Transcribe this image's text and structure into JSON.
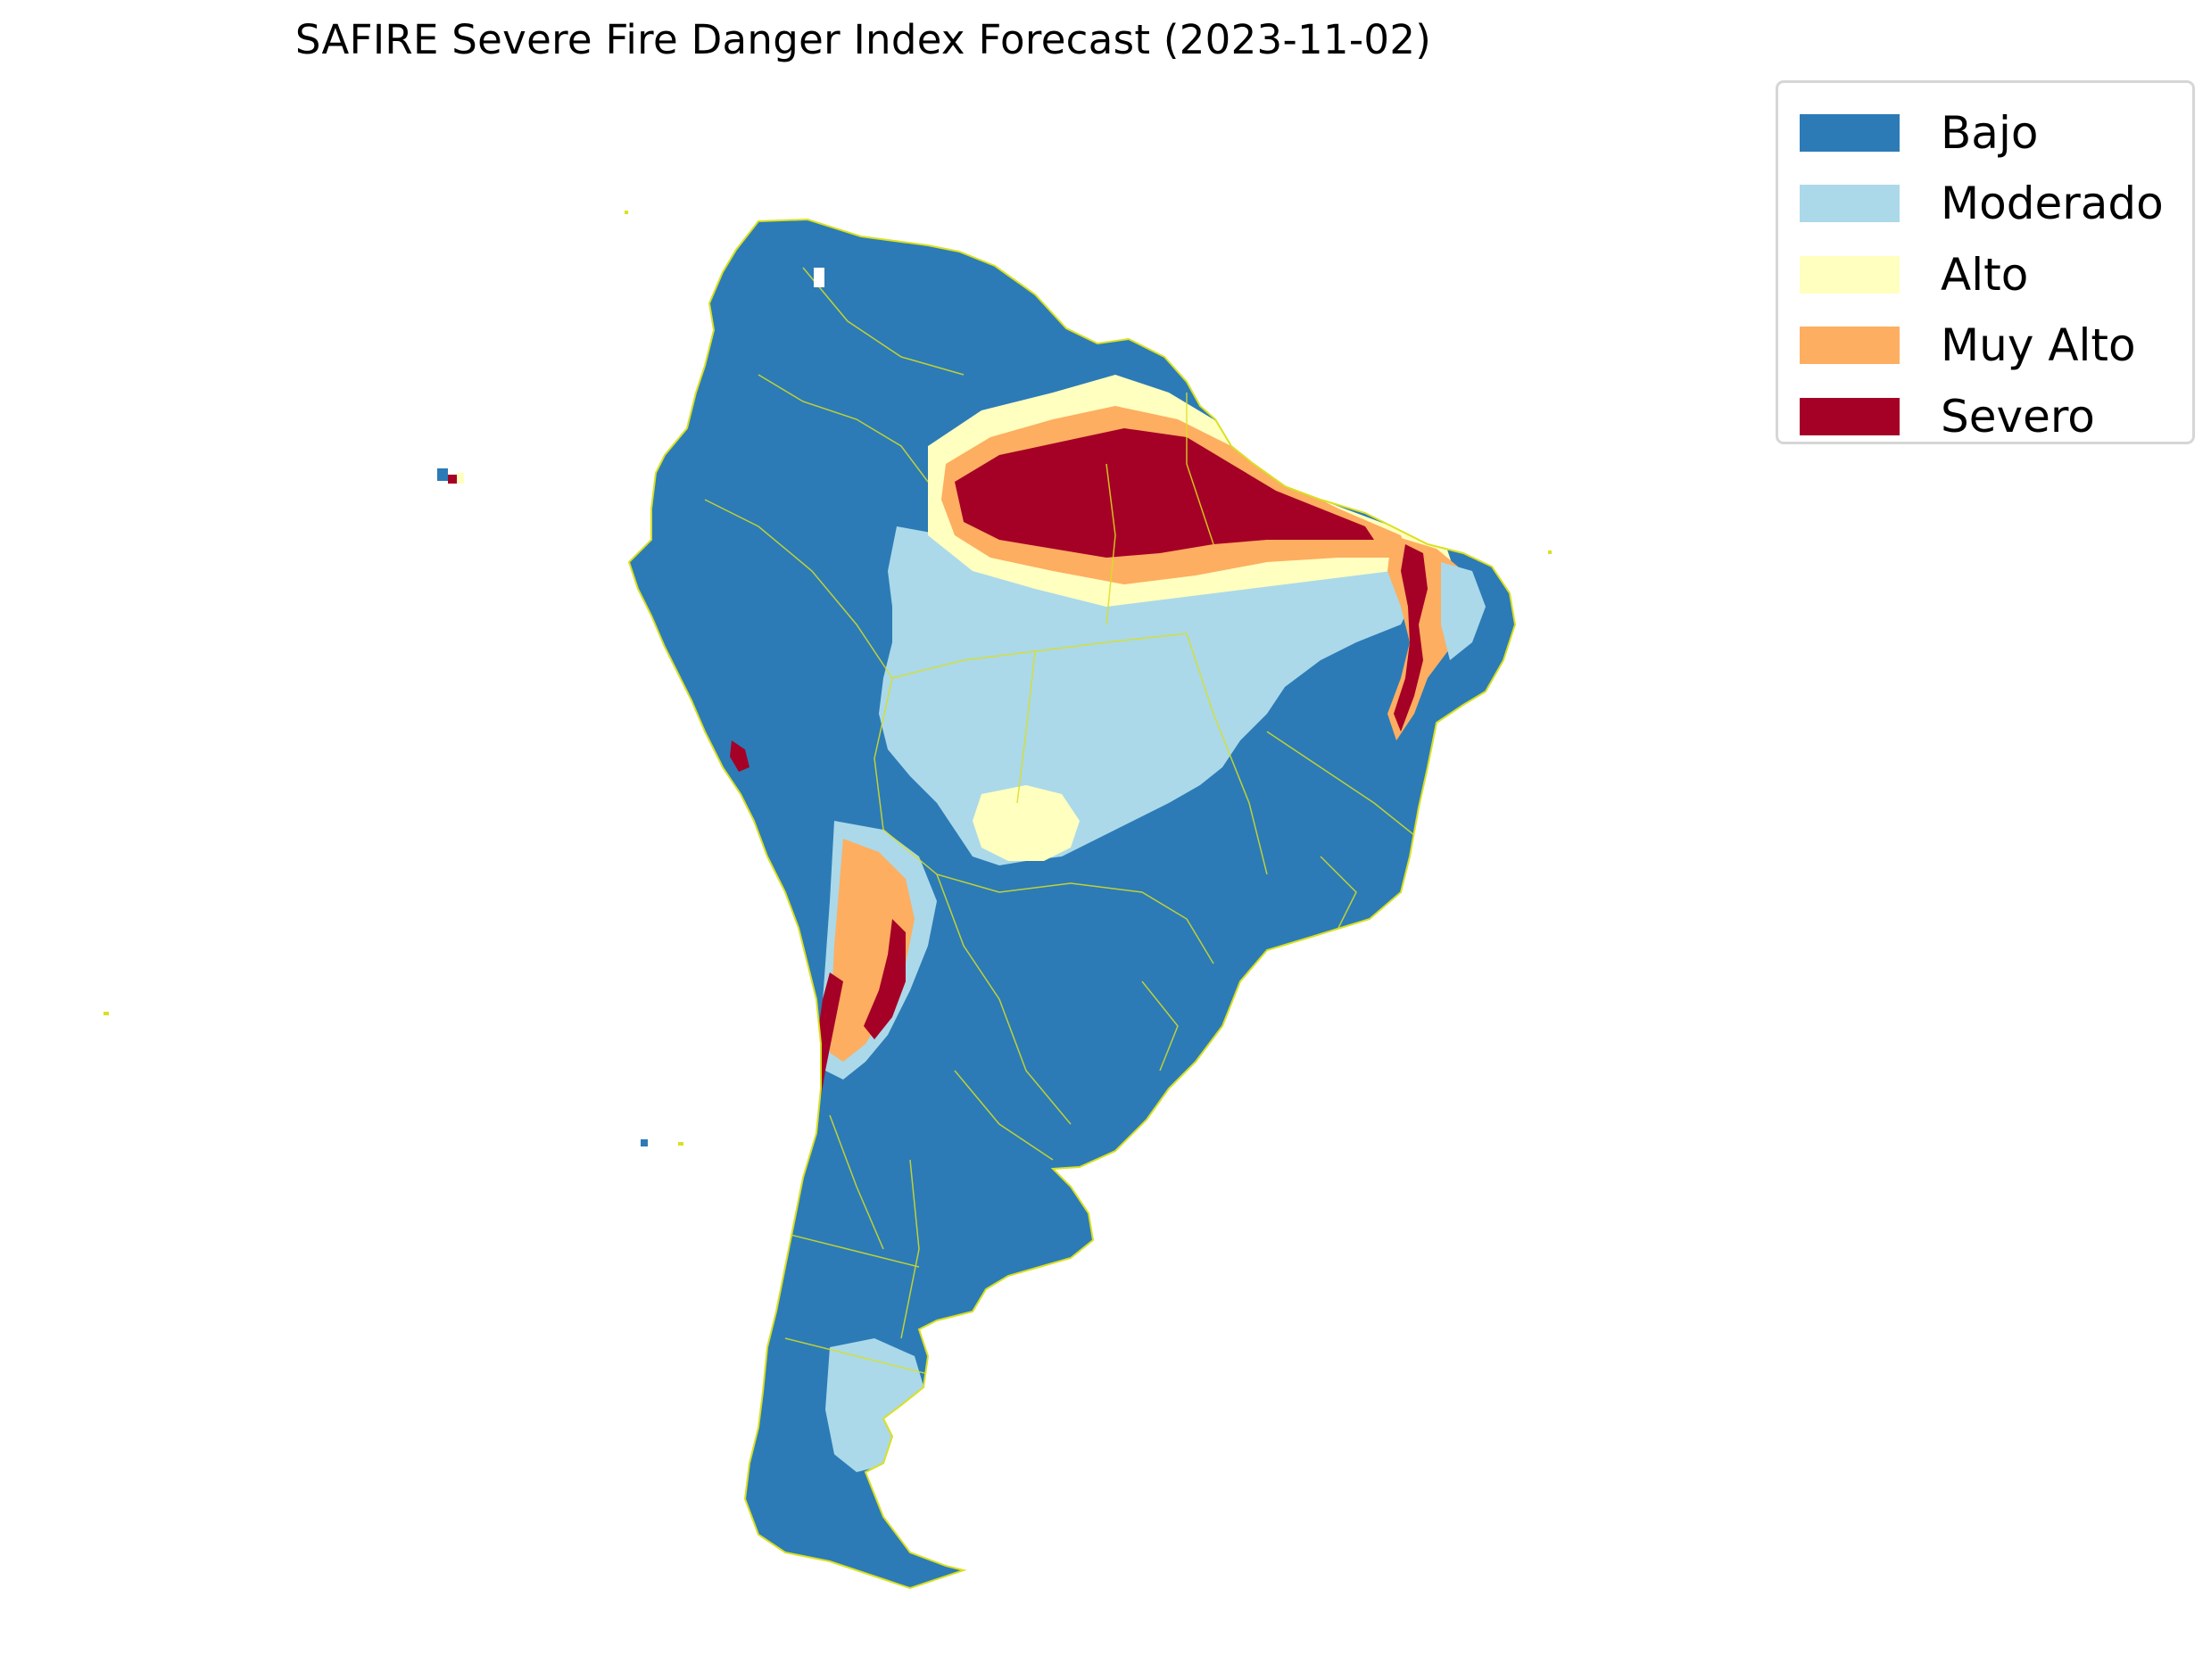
{
  "title": "SAFIRE Severe Fire Danger Index Forecast (2023-11-02)",
  "legend": {
    "items": [
      {
        "label": "Bajo",
        "color": "#2c7bb6"
      },
      {
        "label": "Moderado",
        "color": "#abd9e9"
      },
      {
        "label": "Alto",
        "color": "#ffffbf"
      },
      {
        "label": "Muy Alto",
        "color": "#fdae61"
      },
      {
        "label": "Severo",
        "color": "#a50026"
      }
    ]
  },
  "map": {
    "region": "South America",
    "border_color": "#d9e021",
    "background": "#ffffff"
  }
}
